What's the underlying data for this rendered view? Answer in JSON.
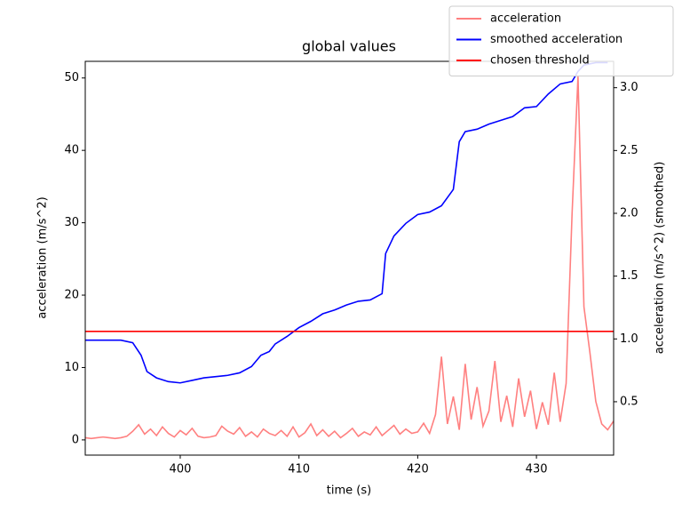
{
  "chart_data": {
    "type": "line",
    "title": "global values",
    "xlabel": "time (s)",
    "ylabel": "acceleration (m/s^2)",
    "y2label": "acceleration (m/s^2) (smoothed)",
    "xlim": [
      392,
      436.5
    ],
    "xticks": [
      400,
      410,
      420,
      430
    ],
    "ylim": [
      -2.1,
      52.3
    ],
    "yticks": [
      0,
      10,
      20,
      30,
      40,
      50
    ],
    "y2lim": [
      0.075,
      3.21
    ],
    "y2ticks": [
      0.5,
      {
        "value": 1,
        "label": "1.0"
      },
      1.5,
      {
        "value": 2,
        "label": "2.0"
      },
      2.5,
      {
        "value": 3,
        "label": "3.0"
      }
    ],
    "legend": "upper right",
    "series": [
      {
        "name": "acceleration",
        "color": "#ff8080",
        "x": [
          392,
          392.5,
          393,
          393.5,
          394,
          394.5,
          395,
          395.5,
          396,
          396.5,
          397,
          397.5,
          398,
          398.5,
          399,
          399.5,
          400,
          400.5,
          401,
          401.5,
          402,
          402.5,
          403,
          403.5,
          404,
          404.5,
          405,
          405.5,
          406,
          406.5,
          407,
          407.5,
          408,
          408.5,
          409,
          409.5,
          410,
          410.5,
          411,
          411.5,
          412,
          412.5,
          413,
          413.5,
          414,
          414.5,
          415,
          415.5,
          416,
          416.5,
          417,
          417.5,
          418,
          418.5,
          419,
          419.5,
          420,
          420.5,
          421,
          421.5,
          422,
          422.5,
          423,
          423.5,
          424,
          424.5,
          425,
          425.5,
          426,
          426.5,
          427,
          427.5,
          428,
          428.5,
          429,
          429.5,
          430,
          430.5,
          431,
          431.5,
          432,
          432.5,
          433,
          433.5,
          434,
          434.5,
          435,
          435.5,
          436,
          436.5
        ],
        "values": [
          0.3,
          0.2,
          0.3,
          0.4,
          0.3,
          0.2,
          0.3,
          0.5,
          1.2,
          2.1,
          0.8,
          1.5,
          0.6,
          1.8,
          0.9,
          0.4,
          1.3,
          0.7,
          1.6,
          0.5,
          0.3,
          0.4,
          0.6,
          1.9,
          1.2,
          0.8,
          1.7,
          0.5,
          1.1,
          0.4,
          1.5,
          0.9,
          0.6,
          1.3,
          0.5,
          1.8,
          0.4,
          1.0,
          2.2,
          0.6,
          1.4,
          0.5,
          1.2,
          0.3,
          0.9,
          1.6,
          0.5,
          1.1,
          0.7,
          1.8,
          0.6,
          1.3,
          2.0,
          0.8,
          1.5,
          0.9,
          1.1,
          2.3,
          0.9,
          3.5,
          11.5,
          2.2,
          6.0,
          1.4,
          10.5,
          2.8,
          7.3,
          1.9,
          4.0,
          10.9,
          2.5,
          6.1,
          1.8,
          8.5,
          3.2,
          6.8,
          1.5,
          5.2,
          2.1,
          9.3,
          2.5,
          7.8,
          31.2,
          50.2,
          18.4,
          12.1,
          5.3,
          2.2,
          1.4,
          2.6
        ]
      },
      {
        "name": "smoothed acceleration",
        "color": "#0000ff",
        "axis": "y2",
        "x": [
          392,
          395,
          396,
          396.7,
          397.2,
          398,
          399,
          400,
          401,
          402,
          403,
          404,
          405,
          406,
          406.8,
          407.5,
          408,
          409,
          410,
          411,
          412,
          413,
          414,
          415,
          416,
          417,
          417.3,
          418,
          419,
          420,
          421,
          422,
          423,
          423.5,
          424,
          425,
          426,
          427,
          428,
          429,
          430,
          431,
          432,
          433,
          433.5,
          434,
          435,
          436
        ],
        "values": [
          0.99,
          0.99,
          0.97,
          0.87,
          0.74,
          0.69,
          0.66,
          0.65,
          0.67,
          0.69,
          0.7,
          0.71,
          0.73,
          0.78,
          0.87,
          0.9,
          0.96,
          1.02,
          1.09,
          1.14,
          1.2,
          1.23,
          1.27,
          1.3,
          1.31,
          1.36,
          1.68,
          1.82,
          1.92,
          1.99,
          2.01,
          2.06,
          2.19,
          2.57,
          2.65,
          2.67,
          2.71,
          2.74,
          2.77,
          2.84,
          2.85,
          2.95,
          3.03,
          3.05,
          3.13,
          3.18,
          3.2,
          3.2
        ]
      },
      {
        "name": "chosen threshold",
        "color": "#ff0000",
        "axis": "y2",
        "x": [
          392,
          436.5
        ],
        "values": [
          1.06,
          1.06
        ]
      }
    ]
  }
}
